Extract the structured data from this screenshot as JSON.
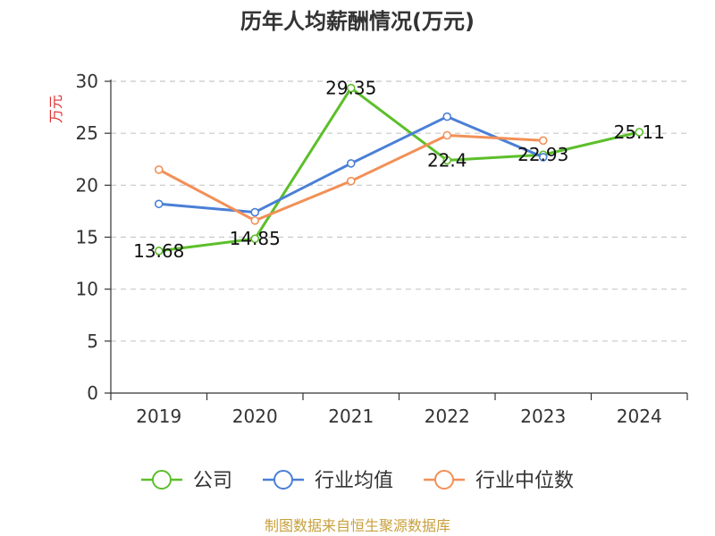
{
  "chart_data": {
    "type": "line",
    "title": "历年人均薪酬情况(万元)",
    "ylabel": "万元",
    "xlabel": "",
    "categories": [
      "2019",
      "2020",
      "2021",
      "2022",
      "2023",
      "2024"
    ],
    "ylim": [
      0,
      30
    ],
    "yticks": [
      0,
      5,
      10,
      15,
      20,
      25,
      30
    ],
    "grid": true,
    "legend_position": "bottom",
    "series": [
      {
        "name": "公司",
        "color": "#5cbf2a",
        "values": [
          13.68,
          14.85,
          29.35,
          22.4,
          22.93,
          25.11
        ],
        "data_labels": [
          "13.68",
          "14.85",
          "29.35",
          "22.4",
          "22.93",
          "25.11"
        ]
      },
      {
        "name": "行业均值",
        "color": "#4a7fd6",
        "values": [
          18.2,
          17.4,
          22.1,
          26.6,
          22.7,
          null
        ]
      },
      {
        "name": "行业中位数",
        "color": "#f29057",
        "values": [
          21.5,
          16.6,
          20.4,
          24.8,
          24.3,
          null
        ]
      }
    ]
  },
  "source_text": "制图数据来自恒生聚源数据库"
}
